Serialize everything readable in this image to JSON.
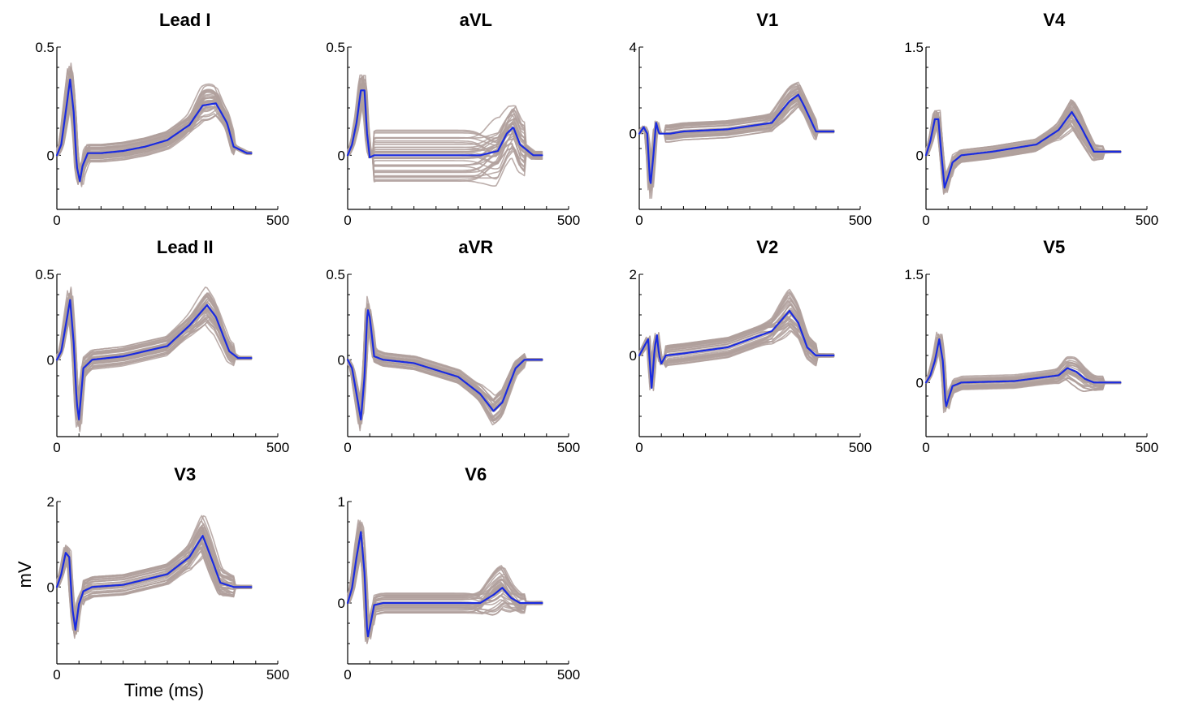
{
  "figure": {
    "ylabel": "mV",
    "xlabel": "Time (ms)"
  },
  "colors": {
    "individual_traces": "#b0a09c",
    "mean_trace": "#1a2be0",
    "axes": "#000000"
  },
  "chart_data": [
    {
      "type": "line",
      "title": "Lead I",
      "xlim": [
        0,
        500
      ],
      "ylim": [
        -0.25,
        0.5
      ],
      "ytick_labels": [
        "0.5",
        "0"
      ],
      "xtick_labels": [
        "0",
        "500"
      ],
      "series": [
        {
          "role": "mean",
          "x": [
            0,
            10,
            20,
            30,
            38,
            45,
            52,
            58,
            70,
            100,
            150,
            200,
            250,
            300,
            330,
            360,
            385,
            400,
            430,
            440
          ],
          "values": [
            0,
            0.05,
            0.2,
            0.35,
            0.2,
            -0.05,
            -0.12,
            -0.05,
            0.01,
            0.01,
            0.02,
            0.04,
            0.07,
            0.14,
            0.23,
            0.24,
            0.15,
            0.04,
            0.01,
            0.01
          ]
        }
      ],
      "spread": 0.04,
      "spread_peak": 0.08
    },
    {
      "type": "line",
      "title": "aVL",
      "xlim": [
        0,
        500
      ],
      "ylim": [
        -0.25,
        0.5
      ],
      "ytick_labels": [
        "0.5",
        "0"
      ],
      "xtick_labels": [
        "0",
        "500"
      ],
      "series": [
        {
          "role": "mean",
          "x": [
            0,
            10,
            20,
            30,
            38,
            44,
            50,
            60,
            100,
            200,
            300,
            340,
            360,
            375,
            390,
            420,
            440
          ],
          "values": [
            0,
            0.05,
            0.15,
            0.3,
            0.3,
            0.1,
            -0.01,
            0,
            0,
            0,
            0,
            0.02,
            0.1,
            0.13,
            0.05,
            0,
            0
          ]
        }
      ],
      "spread": 0.12,
      "spread_peak": 0.08
    },
    {
      "type": "line",
      "title": "V1",
      "xlim": [
        0,
        500
      ],
      "ylim": [
        -3.5,
        4
      ],
      "ytick_labels": [
        "4",
        "0"
      ],
      "xtick_labels": [
        "0",
        "500"
      ],
      "series": [
        {
          "role": "mean",
          "x": [
            0,
            10,
            18,
            25,
            32,
            38,
            45,
            55,
            70,
            100,
            200,
            300,
            340,
            360,
            375,
            400,
            440
          ],
          "values": [
            0,
            0.3,
            0,
            -2.5,
            -1,
            0.5,
            0,
            0,
            0,
            0.1,
            0.2,
            0.5,
            1.5,
            1.8,
            1.2,
            0.1,
            0.1
          ]
        }
      ],
      "spread": 0.4,
      "spread_peak": 0.5
    },
    {
      "type": "line",
      "title": "V4",
      "xlim": [
        0,
        500
      ],
      "ylim": [
        -0.75,
        1.5
      ],
      "ytick_labels": [
        "1.5",
        "0"
      ],
      "xtick_labels": [
        "0",
        "500"
      ],
      "series": [
        {
          "role": "mean",
          "x": [
            0,
            10,
            20,
            28,
            35,
            42,
            50,
            60,
            80,
            150,
            250,
            300,
            330,
            350,
            380,
            400,
            440
          ],
          "values": [
            0,
            0.2,
            0.5,
            0.5,
            0,
            -0.45,
            -0.3,
            -0.1,
            0,
            0.05,
            0.15,
            0.35,
            0.6,
            0.4,
            0.05,
            0.05,
            0.05
          ]
        }
      ],
      "spread": 0.1,
      "spread_peak": 0.2
    },
    {
      "type": "line",
      "title": "Lead II",
      "xlim": [
        0,
        500
      ],
      "ylim": [
        -0.45,
        0.5
      ],
      "ytick_labels": [
        "0.5",
        "0"
      ],
      "xtick_labels": [
        "0",
        "500"
      ],
      "series": [
        {
          "role": "mean",
          "x": [
            0,
            10,
            20,
            30,
            38,
            45,
            50,
            60,
            80,
            150,
            250,
            300,
            340,
            360,
            390,
            410,
            440
          ],
          "values": [
            0,
            0.05,
            0.2,
            0.35,
            0.1,
            -0.25,
            -0.35,
            -0.05,
            0,
            0.02,
            0.08,
            0.2,
            0.32,
            0.25,
            0.05,
            0.01,
            0.01
          ]
        }
      ],
      "spread": 0.06,
      "spread_peak": 0.08
    },
    {
      "type": "line",
      "title": "aVR",
      "xlim": [
        0,
        500
      ],
      "ylim": [
        -0.45,
        0.5
      ],
      "ytick_labels": [
        "0.5",
        "0"
      ],
      "xtick_labels": [
        "0",
        "500"
      ],
      "series": [
        {
          "role": "mean",
          "x": [
            0,
            10,
            20,
            30,
            38,
            45,
            50,
            60,
            80,
            150,
            250,
            300,
            330,
            350,
            380,
            400,
            440
          ],
          "values": [
            0,
            -0.05,
            -0.2,
            -0.35,
            -0.1,
            0.3,
            0.25,
            0.02,
            0,
            -0.02,
            -0.1,
            -0.2,
            -0.3,
            -0.25,
            -0.05,
            0,
            0
          ]
        }
      ],
      "spread": 0.04,
      "spread_peak": 0.06
    },
    {
      "type": "line",
      "title": "V2",
      "xlim": [
        0,
        500
      ],
      "ylim": [
        -2,
        2
      ],
      "ytick_labels": [
        "2",
        "0"
      ],
      "xtick_labels": [
        "0",
        "500"
      ],
      "series": [
        {
          "role": "mean",
          "x": [
            0,
            10,
            20,
            28,
            35,
            40,
            45,
            50,
            60,
            100,
            200,
            300,
            340,
            360,
            380,
            400,
            440
          ],
          "values": [
            0,
            0.2,
            0.4,
            -0.8,
            0.2,
            0.5,
            0,
            -0.2,
            0,
            0.05,
            0.2,
            0.6,
            1.1,
            0.8,
            0.2,
            0,
            0
          ]
        }
      ],
      "spread": 0.25,
      "spread_peak": 0.4
    },
    {
      "type": "line",
      "title": "V5",
      "xlim": [
        0,
        500
      ],
      "ylim": [
        -0.75,
        1.5
      ],
      "ytick_labels": [
        "1.5",
        "0"
      ],
      "xtick_labels": [
        "0",
        "500"
      ],
      "series": [
        {
          "role": "mean",
          "x": [
            0,
            10,
            20,
            30,
            38,
            45,
            52,
            60,
            80,
            200,
            300,
            320,
            340,
            360,
            380,
            440
          ],
          "values": [
            0,
            0.1,
            0.3,
            0.6,
            0.3,
            -0.35,
            -0.2,
            -0.05,
            0,
            0.02,
            0.1,
            0.2,
            0.15,
            0.05,
            0,
            0
          ]
        }
      ],
      "spread": 0.1,
      "spread_peak": 0.15
    },
    {
      "type": "line",
      "title": "V3",
      "xlim": [
        0,
        500
      ],
      "ylim": [
        -1.8,
        2
      ],
      "ytick_labels": [
        "2",
        "0"
      ],
      "xtick_labels": [
        "0",
        "500"
      ],
      "series": [
        {
          "role": "mean",
          "x": [
            0,
            10,
            20,
            28,
            35,
            42,
            50,
            60,
            80,
            150,
            250,
            300,
            330,
            345,
            370,
            400,
            440
          ],
          "values": [
            0,
            0.3,
            0.8,
            0.7,
            -0.5,
            -1.0,
            -0.4,
            -0.1,
            0,
            0.05,
            0.3,
            0.7,
            1.2,
            0.8,
            0.1,
            0,
            0
          ]
        }
      ],
      "spread": 0.25,
      "spread_peak": 0.35
    },
    {
      "type": "line",
      "title": "V6",
      "xlim": [
        0,
        500
      ],
      "ylim": [
        -0.6,
        1
      ],
      "ytick_labels": [
        "1",
        "0"
      ],
      "xtick_labels": [
        "0",
        "500"
      ],
      "series": [
        {
          "role": "mean",
          "x": [
            0,
            10,
            20,
            30,
            38,
            45,
            52,
            60,
            80,
            200,
            300,
            330,
            350,
            370,
            390,
            440
          ],
          "values": [
            0,
            0.15,
            0.45,
            0.7,
            0.3,
            -0.35,
            -0.2,
            -0.02,
            0,
            0,
            0,
            0.08,
            0.15,
            0.05,
            0,
            0
          ]
        }
      ],
      "spread": 0.1,
      "spread_peak": 0.18
    }
  ]
}
